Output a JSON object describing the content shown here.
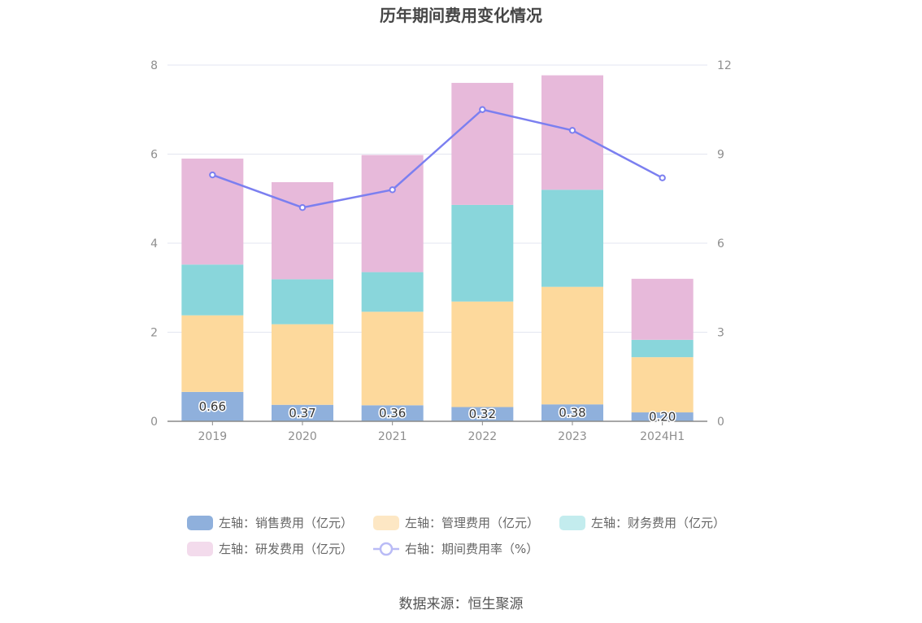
{
  "source_text": "数据来源：恒生聚源",
  "chart_data": {
    "type": "bar",
    "title": "历年期间费用变化情况",
    "categories": [
      "2019",
      "2020",
      "2021",
      "2022",
      "2023",
      "2024H1"
    ],
    "left_axis": {
      "ylim": [
        0,
        8
      ],
      "ticks": [
        "0",
        "2",
        "4",
        "6",
        "8"
      ]
    },
    "right_axis": {
      "ylim": [
        0,
        12
      ],
      "ticks": [
        "0",
        "3",
        "6",
        "9",
        "12"
      ]
    },
    "grid": true,
    "legend_position": "bottom",
    "series": [
      {
        "name": "左轴：销售费用（亿元）",
        "type": "bar",
        "axis": "left",
        "color": "#8fb0dc",
        "legend_color": "#8fb0dc",
        "values": [
          0.66,
          0.37,
          0.36,
          0.32,
          0.38,
          0.2
        ],
        "labels": [
          "0.66",
          "0.37",
          "0.36",
          "0.32",
          "0.38",
          "0.20"
        ]
      },
      {
        "name": "左轴：管理费用（亿元）",
        "type": "bar",
        "axis": "left",
        "color": "#fdd99c",
        "legend_color": "#fde7c4",
        "values": [
          1.72,
          1.81,
          2.1,
          2.37,
          2.64,
          1.24
        ]
      },
      {
        "name": "左轴：财务费用（亿元）",
        "type": "bar",
        "axis": "left",
        "color": "#89d6db",
        "legend_color": "#c3ecee",
        "values": [
          1.14,
          1.01,
          0.89,
          2.17,
          2.18,
          0.39
        ]
      },
      {
        "name": "左轴：研发费用（亿元）",
        "type": "bar",
        "axis": "left",
        "color": "#e7b9da",
        "legend_color": "#f3dbec",
        "values": [
          2.38,
          2.18,
          2.63,
          2.74,
          2.57,
          1.37
        ]
      },
      {
        "name": "右轴：期间费用率（%）",
        "type": "line",
        "axis": "right",
        "color": "#7b7ff0",
        "legend_color": "#b9bbf6",
        "values": [
          8.3,
          7.2,
          7.8,
          10.5,
          9.8,
          8.2
        ]
      }
    ]
  }
}
